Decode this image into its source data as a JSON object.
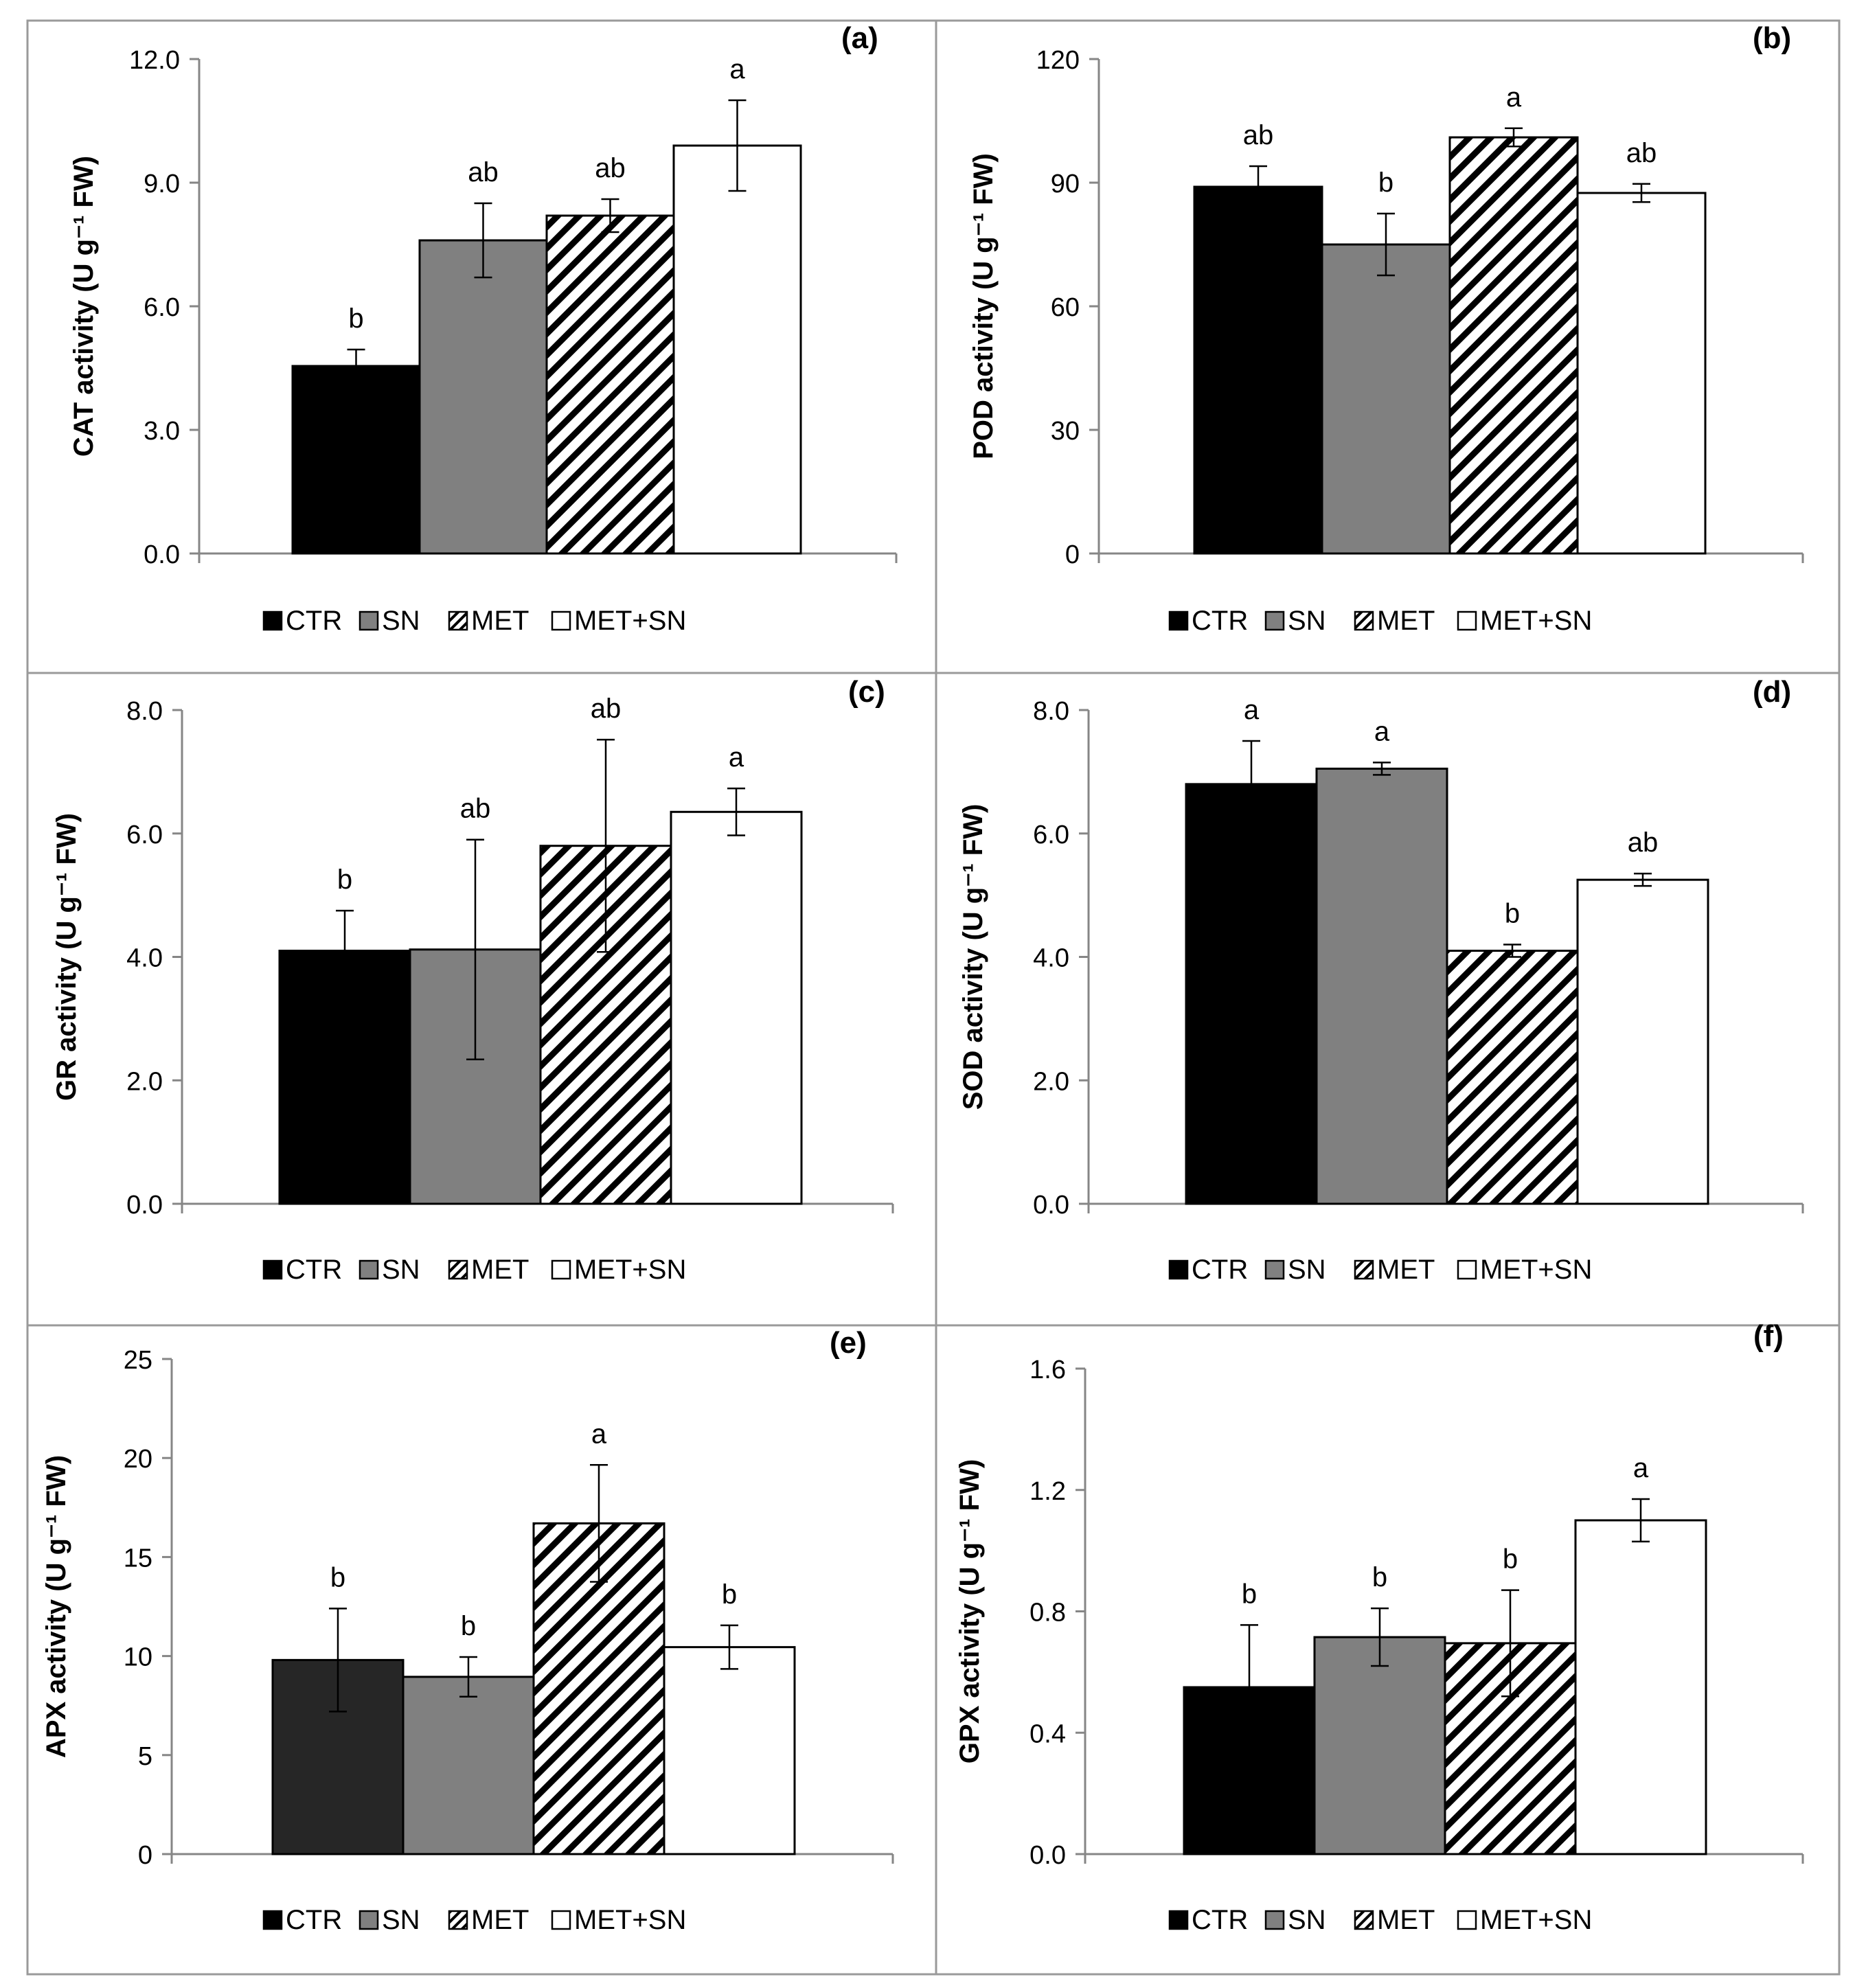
{
  "legend": [
    "CTR",
    "SN",
    "MET",
    "MET+SN"
  ],
  "colors": {
    "CTR": "#000000",
    "SN": "#808080",
    "MET": "hatch",
    "MET+SN": "#ffffff",
    "CTR_e": "#262626"
  },
  "chart_data": [
    {
      "type": "bar",
      "panel": "(a)",
      "title": "",
      "ylabel": "CAT activity (U g⁻¹ FW)",
      "xlabel": "",
      "ylim": [
        0,
        12
      ],
      "yticks": [
        "0.0",
        "3.0",
        "6.0",
        "9.0",
        "12.0"
      ],
      "ytick_values": [
        0,
        3,
        6,
        9,
        12
      ],
      "categories": [
        "CTR",
        "SN",
        "MET",
        "MET+SN"
      ],
      "values": [
        4.55,
        7.6,
        8.2,
        9.9
      ],
      "errors": [
        0.4,
        0.9,
        0.4,
        1.1
      ],
      "letters": [
        "b",
        "ab",
        "ab",
        "a"
      ]
    },
    {
      "type": "bar",
      "panel": "(b)",
      "title": "",
      "ylabel": "POD activity (U g⁻¹ FW)",
      "xlabel": "",
      "ylim": [
        0,
        120
      ],
      "yticks": [
        "0",
        "30",
        "60",
        "90",
        "120"
      ],
      "ytick_values": [
        0,
        30,
        60,
        90,
        120
      ],
      "categories": [
        "CTR",
        "SN",
        "MET",
        "MET+SN"
      ],
      "values": [
        89,
        75,
        101,
        87.5
      ],
      "errors": [
        5,
        7.5,
        2.2,
        2.2
      ],
      "letters": [
        "ab",
        "b",
        "a",
        "ab"
      ]
    },
    {
      "type": "bar",
      "panel": "(c)",
      "title": "",
      "ylabel": "GR activity (U g⁻¹ FW)",
      "xlabel": "",
      "ylim": [
        0,
        8
      ],
      "yticks": [
        "0.0",
        "2.0",
        "4.0",
        "6.0",
        "8.0"
      ],
      "ytick_values": [
        0,
        2,
        4,
        6,
        8
      ],
      "categories": [
        "CTR",
        "SN",
        "MET",
        "MET+SN"
      ],
      "values": [
        4.1,
        4.12,
        5.8,
        6.35
      ],
      "errors": [
        0.65,
        1.78,
        1.72,
        0.38
      ],
      "letters": [
        "b",
        "ab",
        "ab",
        "a"
      ]
    },
    {
      "type": "bar",
      "panel": "(d)",
      "title": "",
      "ylabel": "SOD activity (U g⁻¹ FW)",
      "xlabel": "",
      "ylim": [
        0,
        8
      ],
      "yticks": [
        "0.0",
        "2.0",
        "4.0",
        "6.0",
        "8.0"
      ],
      "ytick_values": [
        0,
        2,
        4,
        6,
        8
      ],
      "categories": [
        "CTR",
        "SN",
        "MET",
        "MET+SN"
      ],
      "values": [
        6.8,
        7.05,
        4.1,
        5.25
      ],
      "errors": [
        0.7,
        0.1,
        0.1,
        0.1
      ],
      "letters": [
        "a",
        "a",
        "b",
        "ab"
      ]
    },
    {
      "type": "bar",
      "panel": "(e)",
      "title": "",
      "ylabel": "APX activity (U g⁻¹ FW)",
      "xlabel": "",
      "ylim": [
        0,
        25
      ],
      "yticks": [
        "0",
        "5",
        "10",
        "15",
        "20",
        "25"
      ],
      "ytick_values": [
        0,
        5,
        10,
        15,
        20,
        25
      ],
      "categories": [
        "CTR",
        "SN",
        "MET",
        "MET+SN"
      ],
      "values": [
        9.8,
        8.95,
        16.7,
        10.45
      ],
      "errors": [
        2.6,
        1.0,
        2.95,
        1.1
      ],
      "letters": [
        "b",
        "b",
        "a",
        "b"
      ]
    },
    {
      "type": "bar",
      "panel": "(f)",
      "title": "",
      "ylabel": "GPX activity (U g⁻¹ FW)",
      "xlabel": "",
      "ylim": [
        0,
        1.6
      ],
      "yticks": [
        "0.0",
        "0.4",
        "0.8",
        "1.2",
        "1.6"
      ],
      "ytick_values": [
        0,
        0.4,
        0.8,
        1.2,
        1.6
      ],
      "categories": [
        "CTR",
        "SN",
        "MET",
        "MET+SN"
      ],
      "values": [
        0.55,
        0.715,
        0.695,
        1.1
      ],
      "errors": [
        0.205,
        0.095,
        0.175,
        0.07
      ],
      "letters": [
        "b",
        "b",
        "b",
        "a"
      ]
    }
  ]
}
